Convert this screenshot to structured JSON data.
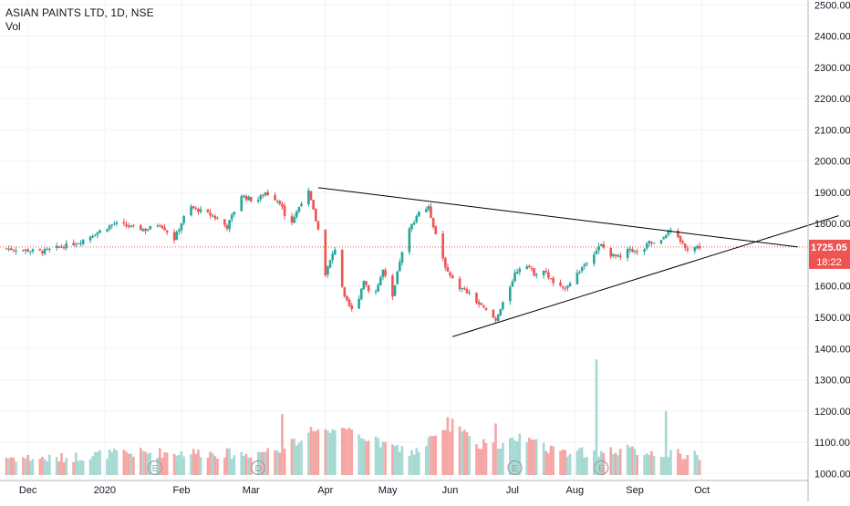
{
  "chart_data": {
    "type": "candlestick",
    "title": "ASIAN PAINTS LTD, 1D, NSE",
    "volume_label": "Vol",
    "y_ticks": [
      "2500.00",
      "2400.00",
      "2300.00",
      "2200.00",
      "2100.00",
      "2000.00",
      "1900.00",
      "1800.00",
      "1700.00",
      "1600.00",
      "1500.00",
      "1400.00",
      "1300.00",
      "1200.00",
      "1100.00",
      "1000.00"
    ],
    "ylim": [
      995,
      2510
    ],
    "x_ticks": [
      "Dec",
      "2020",
      "Feb",
      "Mar",
      "Apr",
      "May",
      "Jun",
      "Jul",
      "Aug",
      "Sep",
      "Oct"
    ],
    "price_label": "1725.05",
    "timer_label": "18:22",
    "last_price": 1725.05,
    "events": [
      "E",
      "D",
      "E",
      "E"
    ],
    "segments": [
      {
        "d": 0,
        "v": 1720
      },
      {
        "d": 15,
        "v": 1710
      },
      {
        "d": 30,
        "v": 1740
      },
      {
        "d": 45,
        "v": 1800
      },
      {
        "d": 58,
        "v": 1780
      },
      {
        "d": 64,
        "v": 1800
      },
      {
        "d": 70,
        "v": 1750
      },
      {
        "d": 76,
        "v": 1855
      },
      {
        "d": 86,
        "v": 1825
      },
      {
        "d": 92,
        "v": 1790
      },
      {
        "d": 98,
        "v": 1890
      },
      {
        "d": 104,
        "v": 1870
      },
      {
        "d": 108,
        "v": 1900
      },
      {
        "d": 114,
        "v": 1870
      },
      {
        "d": 118,
        "v": 1790
      },
      {
        "d": 123,
        "v": 1870
      },
      {
        "d": 126,
        "v": 1900
      },
      {
        "d": 130,
        "v": 1780
      },
      {
        "d": 133,
        "v": 1640
      },
      {
        "d": 137,
        "v": 1720
      },
      {
        "d": 141,
        "v": 1560
      },
      {
        "d": 145,
        "v": 1510
      },
      {
        "d": 149,
        "v": 1620
      },
      {
        "d": 153,
        "v": 1560
      },
      {
        "d": 157,
        "v": 1650
      },
      {
        "d": 161,
        "v": 1560
      },
      {
        "d": 164,
        "v": 1680
      },
      {
        "d": 168,
        "v": 1780
      },
      {
        "d": 172,
        "v": 1840
      },
      {
        "d": 176,
        "v": 1850
      },
      {
        "d": 180,
        "v": 1740
      },
      {
        "d": 184,
        "v": 1640
      },
      {
        "d": 188,
        "v": 1600
      },
      {
        "d": 192,
        "v": 1580
      },
      {
        "d": 196,
        "v": 1550
      },
      {
        "d": 200,
        "v": 1520
      },
      {
        "d": 204,
        "v": 1490
      },
      {
        "d": 208,
        "v": 1560
      },
      {
        "d": 212,
        "v": 1640
      },
      {
        "d": 216,
        "v": 1680
      },
      {
        "d": 220,
        "v": 1640
      },
      {
        "d": 224,
        "v": 1650
      },
      {
        "d": 228,
        "v": 1610
      },
      {
        "d": 232,
        "v": 1590
      },
      {
        "d": 236,
        "v": 1620
      },
      {
        "d": 240,
        "v": 1660
      },
      {
        "d": 244,
        "v": 1700
      },
      {
        "d": 248,
        "v": 1730
      },
      {
        "d": 252,
        "v": 1700
      },
      {
        "d": 256,
        "v": 1690
      },
      {
        "d": 260,
        "v": 1720
      },
      {
        "d": 264,
        "v": 1700
      },
      {
        "d": 268,
        "v": 1740
      },
      {
        "d": 272,
        "v": 1730
      },
      {
        "d": 276,
        "v": 1780
      },
      {
        "d": 280,
        "v": 1750
      },
      {
        "d": 284,
        "v": 1720
      },
      {
        "d": 288,
        "v": 1725
      }
    ],
    "volume_segments": [
      {
        "d": 0,
        "v": 1045
      },
      {
        "d": 20,
        "v": 1040
      },
      {
        "d": 40,
        "v": 1055
      },
      {
        "d": 60,
        "v": 1060
      },
      {
        "d": 80,
        "v": 1060
      },
      {
        "d": 100,
        "v": 1055
      },
      {
        "d": 112,
        "v": 1070
      },
      {
        "d": 122,
        "v": 1100
      },
      {
        "d": 128,
        "v": 1140
      },
      {
        "d": 136,
        "v": 1120
      },
      {
        "d": 144,
        "v": 1130
      },
      {
        "d": 152,
        "v": 1100
      },
      {
        "d": 160,
        "v": 1080
      },
      {
        "d": 170,
        "v": 1060
      },
      {
        "d": 180,
        "v": 1120
      },
      {
        "d": 188,
        "v": 1140
      },
      {
        "d": 196,
        "v": 1090
      },
      {
        "d": 206,
        "v": 1080
      },
      {
        "d": 216,
        "v": 1110
      },
      {
        "d": 226,
        "v": 1070
      },
      {
        "d": 236,
        "v": 1060
      },
      {
        "d": 246,
        "v": 1060
      },
      {
        "d": 256,
        "v": 1070
      },
      {
        "d": 270,
        "v": 1060
      },
      {
        "d": 288,
        "v": 1050
      }
    ],
    "volume_spikes": [
      {
        "d": 115,
        "v": 1190
      },
      {
        "d": 184,
        "v": 1180
      },
      {
        "d": 186,
        "v": 1175
      },
      {
        "d": 204,
        "v": 1160
      },
      {
        "d": 246,
        "v": 1365
      },
      {
        "d": 275,
        "v": 1200
      }
    ],
    "trend_lines": [
      {
        "x1_day": 130,
        "y1": 1915,
        "x2_day": 330,
        "y2": 1725
      },
      {
        "x1_day": 186,
        "y1": 1438,
        "x2_day": 347,
        "y2": 1825
      }
    ],
    "colors": {
      "up": "#26a69a",
      "down": "#ef5350",
      "vol_up": "#a6d8d2",
      "vol_down": "#f5a5a3",
      "trend": "#000000",
      "grid": "#f0f3fa",
      "text": "#131722",
      "axis_line": "#b2b5be"
    }
  }
}
